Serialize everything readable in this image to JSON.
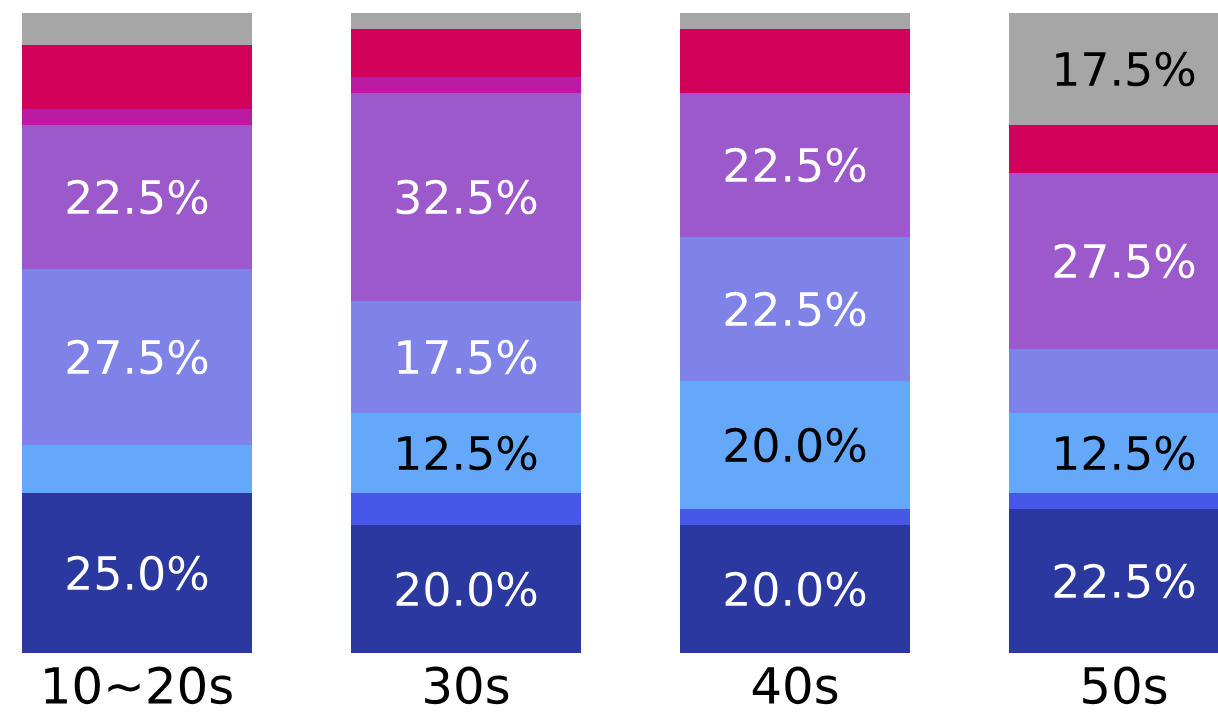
{
  "chart_data": {
    "type": "bar",
    "stacked": true,
    "categories": [
      "10~20s",
      "30s",
      "40s",
      "50s"
    ],
    "tick_labels": "x",
    "series": [
      {
        "color": "#2b38a0",
        "values": [
          25.0,
          20.0,
          20.0,
          22.5
        ],
        "value_labels": [
          "25.0%",
          "20.0%",
          "20.0%",
          "22.5%"
        ]
      },
      {
        "color": "#4758e8",
        "values": [
          0,
          5.0,
          2.5,
          2.5
        ],
        "value_labels": [
          null,
          null,
          null,
          null
        ]
      },
      {
        "color": "#64a8fa",
        "values": [
          7.5,
          12.5,
          20.0,
          12.5
        ],
        "value_labels": [
          null,
          "12.5%",
          "20.0%",
          "12.5%"
        ]
      },
      {
        "color": "#7f82e6",
        "values": [
          27.5,
          17.5,
          22.5,
          10.0
        ],
        "value_labels": [
          "27.5%",
          "17.5%",
          "22.5%",
          null
        ]
      },
      {
        "color": "#9b59cc",
        "values": [
          22.5,
          32.5,
          22.5,
          27.5
        ],
        "value_labels": [
          "22.5%",
          "32.5%",
          "22.5%",
          "27.5%"
        ]
      },
      {
        "color": "#bb1aa0",
        "values": [
          2.5,
          2.5,
          0,
          0
        ],
        "value_labels": [
          null,
          null,
          null,
          null
        ]
      },
      {
        "color": "#d1005a",
        "values": [
          10.0,
          7.5,
          10.0,
          7.5
        ],
        "value_labels": [
          null,
          null,
          null,
          null
        ]
      },
      {
        "color": "#a6a6a6",
        "values": [
          5.0,
          2.5,
          2.5,
          17.5
        ],
        "value_labels": [
          null,
          null,
          null,
          "17.5%"
        ]
      }
    ]
  }
}
